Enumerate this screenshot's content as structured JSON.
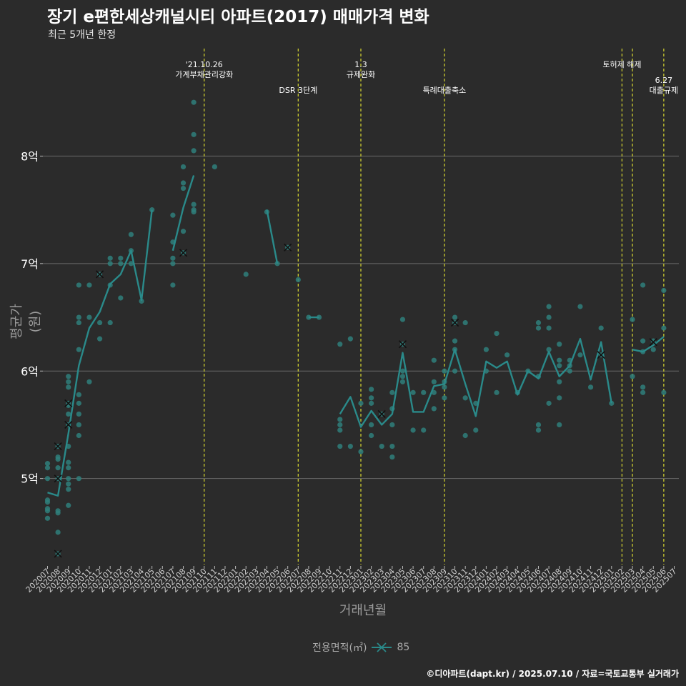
{
  "title": "장기 e편한세상캐널시티 아파트(2017) 매매가격 변화",
  "subtitle": "최근 5개년 한정",
  "caption": "©디아파트(dapt.kr) / 2025.07.10 / 자료=국토교통부 실거래가",
  "colors": {
    "background": "#2b2b2b",
    "series": "#2a8a8a",
    "point": "#2f7f7b",
    "event_line": "#d8d830",
    "grid": "#6a6a6a",
    "text": "#ffffff"
  },
  "chart_data": {
    "type": "line",
    "title": "장기 e편한세상캐널시티 아파트(2017) 매매가격 변화",
    "subtitle": "최근 5개년 한정",
    "xlabel": "거래년월",
    "ylabel": "평균가(원)",
    "ylim": [
      4.2,
      9.0
    ],
    "y_ticks": [
      {
        "v": 5,
        "label": "5억"
      },
      {
        "v": 6,
        "label": "6억"
      },
      {
        "v": 7,
        "label": "7억"
      },
      {
        "v": 8,
        "label": "8억"
      }
    ],
    "categories": [
      "202007",
      "202008",
      "202009",
      "202010",
      "202011",
      "202012",
      "202101",
      "202102",
      "202103",
      "202104",
      "202105",
      "202106",
      "202107",
      "202108",
      "202109",
      "202110",
      "202111",
      "202112",
      "202201",
      "202202",
      "202203",
      "202204",
      "202205",
      "202206",
      "202207",
      "202208",
      "202209",
      "202210",
      "202211",
      "202212",
      "202301",
      "202302",
      "202303",
      "202304",
      "202305",
      "202306",
      "202307",
      "202308",
      "202309",
      "202310",
      "202311",
      "202312",
      "202401",
      "202402",
      "202403",
      "202404",
      "202405",
      "202406",
      "202407",
      "202408",
      "202409",
      "202410",
      "202411",
      "202412",
      "202501",
      "202502",
      "202503",
      "202504",
      "202505",
      "202506",
      "202507"
    ],
    "legend": {
      "title": "전용면적(㎡)",
      "entries": [
        "85"
      ]
    },
    "series": [
      {
        "name": "85",
        "segments": [
          [
            [
              "202007",
              4.87
            ],
            [
              "202008",
              4.84
            ],
            [
              "202009",
              5.42
            ],
            [
              "202010",
              6.05
            ],
            [
              "202011",
              6.4
            ],
            [
              "202012",
              6.55
            ],
            [
              "202101",
              6.81
            ],
            [
              "202102",
              6.9
            ],
            [
              "202103",
              7.12
            ],
            [
              "202104",
              6.66
            ],
            [
              "202105",
              7.5
            ]
          ],
          [
            [
              "202107",
              7.12
            ],
            [
              "202108",
              7.52
            ],
            [
              "202109",
              7.82
            ]
          ],
          [
            [
              "202204",
              7.5
            ],
            [
              "202205",
              7.0
            ]
          ],
          [
            [
              "202208",
              6.5
            ],
            [
              "202209",
              6.5
            ]
          ],
          [
            [
              "202211",
              5.6
            ],
            [
              "202212",
              5.76
            ],
            [
              "202301",
              5.48
            ],
            [
              "202302",
              5.63
            ],
            [
              "202303",
              5.5
            ],
            [
              "202304",
              5.6
            ],
            [
              "202305",
              6.17
            ],
            [
              "202306",
              5.62
            ],
            [
              "202307",
              5.62
            ],
            [
              "202308",
              5.86
            ],
            [
              "202309",
              5.88
            ],
            [
              "202310",
              6.2
            ],
            [
              "202311",
              5.88
            ],
            [
              "202312",
              5.58
            ],
            [
              "202401",
              6.09
            ],
            [
              "202402",
              6.03
            ],
            [
              "202403",
              6.09
            ],
            [
              "202404",
              5.78
            ],
            [
              "202405",
              6.0
            ],
            [
              "202406",
              5.93
            ],
            [
              "202407",
              6.18
            ],
            [
              "202408",
              5.95
            ],
            [
              "202409",
              6.05
            ],
            [
              "202410",
              6.3
            ],
            [
              "202411",
              5.92
            ],
            [
              "202412",
              6.27
            ],
            [
              "202501",
              5.7
            ]
          ],
          [
            [
              "202503",
              6.2
            ],
            [
              "202504",
              6.18
            ],
            [
              "202505",
              6.24
            ],
            [
              "202506",
              6.32
            ]
          ]
        ]
      }
    ],
    "points": [
      [
        "202007",
        [
          5.14,
          5.1,
          5.0,
          4.8,
          4.78,
          4.72,
          4.7,
          4.63
        ]
      ],
      [
        "202008",
        [
          5.3,
          5.2,
          5.18,
          5.1,
          5.0,
          4.7,
          4.68,
          4.5,
          4.3
        ]
      ],
      [
        "202009",
        [
          5.95,
          5.9,
          5.85,
          5.7,
          5.68,
          5.6,
          5.5,
          5.3,
          5.15,
          5.1,
          5.0,
          4.95,
          4.9,
          4.75
        ]
      ],
      [
        "202010",
        [
          6.8,
          6.5,
          6.45,
          6.2,
          5.78,
          5.7,
          5.6,
          5.5,
          5.4,
          5.0
        ]
      ],
      [
        "202011",
        [
          6.8,
          6.5,
          5.9
        ]
      ],
      [
        "202012",
        [
          6.9,
          6.45,
          6.3
        ]
      ],
      [
        "202101",
        [
          7.05,
          7.0,
          6.8,
          6.45
        ]
      ],
      [
        "202102",
        [
          7.05,
          7.0,
          6.68
        ]
      ],
      [
        "202103",
        [
          7.27,
          7.12,
          7.0
        ]
      ],
      [
        "202104",
        [
          6.65
        ]
      ],
      [
        "202105",
        [
          7.5
        ]
      ],
      [
        "202107",
        [
          7.45,
          7.2,
          7.05,
          7.0,
          6.8
        ]
      ],
      [
        "202108",
        [
          7.9,
          7.75,
          7.7,
          7.3,
          7.1
        ]
      ],
      [
        "202109",
        [
          8.5,
          8.2,
          8.05,
          7.55,
          7.5,
          7.48
        ]
      ],
      [
        "202111",
        [
          7.9
        ]
      ],
      [
        "202202",
        [
          6.9
        ]
      ],
      [
        "202204",
        [
          7.48
        ]
      ],
      [
        "202205",
        [
          7.0
        ]
      ],
      [
        "202206",
        [
          7.15
        ]
      ],
      [
        "202207",
        [
          6.85
        ]
      ],
      [
        "202208",
        [
          6.5
        ]
      ],
      [
        "202209",
        [
          6.5
        ]
      ],
      [
        "202211",
        [
          6.25,
          5.55,
          5.5,
          5.45,
          5.3
        ]
      ],
      [
        "202212",
        [
          6.3,
          5.3
        ]
      ],
      [
        "202301",
        [
          5.7,
          5.25
        ]
      ],
      [
        "202302",
        [
          5.83,
          5.75,
          5.7,
          5.5,
          5.4
        ]
      ],
      [
        "202303",
        [
          5.6,
          5.3
        ]
      ],
      [
        "202304",
        [
          5.8,
          5.65,
          5.5,
          5.3,
          5.2
        ]
      ],
      [
        "202305",
        [
          6.48,
          6.25,
          6.0,
          5.95,
          5.9
        ]
      ],
      [
        "202306",
        [
          5.8,
          5.45
        ]
      ],
      [
        "202307",
        [
          5.8,
          5.45
        ]
      ],
      [
        "202308",
        [
          6.1,
          5.9,
          5.8,
          5.65
        ]
      ],
      [
        "202309",
        [
          6.0,
          5.9,
          5.85,
          5.75
        ]
      ],
      [
        "202310",
        [
          6.5,
          6.45,
          6.28,
          6.2,
          6.0
        ]
      ],
      [
        "202311",
        [
          6.45,
          5.75,
          5.4
        ]
      ],
      [
        "202312",
        [
          5.7,
          5.45
        ]
      ],
      [
        "202401",
        [
          6.2,
          6.0
        ]
      ],
      [
        "202402",
        [
          6.35,
          5.8
        ]
      ],
      [
        "202403",
        [
          6.15
        ]
      ],
      [
        "202404",
        [
          5.8
        ]
      ],
      [
        "202405",
        [
          6.0
        ]
      ],
      [
        "202406",
        [
          6.45,
          6.4,
          5.95,
          5.5,
          5.45
        ]
      ],
      [
        "202407",
        [
          6.6,
          6.5,
          6.4,
          6.2,
          5.7
        ]
      ],
      [
        "202408",
        [
          6.25,
          6.1,
          6.05,
          5.9,
          5.75,
          5.5
        ]
      ],
      [
        "202409",
        [
          6.1,
          6.05,
          6.0
        ]
      ],
      [
        "202410",
        [
          6.6,
          6.15
        ]
      ],
      [
        "202411",
        [
          5.85
        ]
      ],
      [
        "202412",
        [
          6.4,
          6.15
        ]
      ],
      [
        "202501",
        [
          5.7
        ]
      ],
      [
        "202503",
        [
          6.48,
          5.95
        ]
      ],
      [
        "202504",
        [
          6.8,
          6.28,
          6.18,
          5.85,
          5.8
        ]
      ],
      [
        "202505",
        [
          6.28,
          6.2
        ]
      ],
      [
        "202506",
        [
          6.75,
          6.4,
          5.8
        ]
      ]
    ],
    "crosses": [
      [
        "202008",
        5.3
      ],
      [
        "202008",
        5.0
      ],
      [
        "202008",
        4.3
      ],
      [
        "202009",
        5.7
      ],
      [
        "202009",
        5.5
      ],
      [
        "202012",
        6.9
      ],
      [
        "202108",
        7.1
      ],
      [
        "202206",
        7.15
      ],
      [
        "202303",
        5.6
      ],
      [
        "202305",
        6.25
      ],
      [
        "202310",
        6.45
      ],
      [
        "202412",
        6.15
      ],
      [
        "202505",
        6.27
      ]
    ],
    "events": [
      {
        "x": "202110",
        "lines": [
          "'21.10.26",
          "가계부채관리강화"
        ],
        "row": 0
      },
      {
        "x": "202207",
        "lines": [
          "DSR 3단계"
        ],
        "row": 1
      },
      {
        "x": "202301",
        "lines": [
          "1.3",
          "규제완화"
        ],
        "row": 0
      },
      {
        "x": "202309",
        "lines": [
          "특례대출축소"
        ],
        "row": 1
      },
      {
        "x": "202502",
        "lines": [
          "토허제 해제"
        ],
        "row": 0
      },
      {
        "x": "202503",
        "lines": [],
        "row": 0
      },
      {
        "x": "202506",
        "lines": [
          "6.27",
          "대출규제"
        ],
        "row": 1
      }
    ]
  }
}
